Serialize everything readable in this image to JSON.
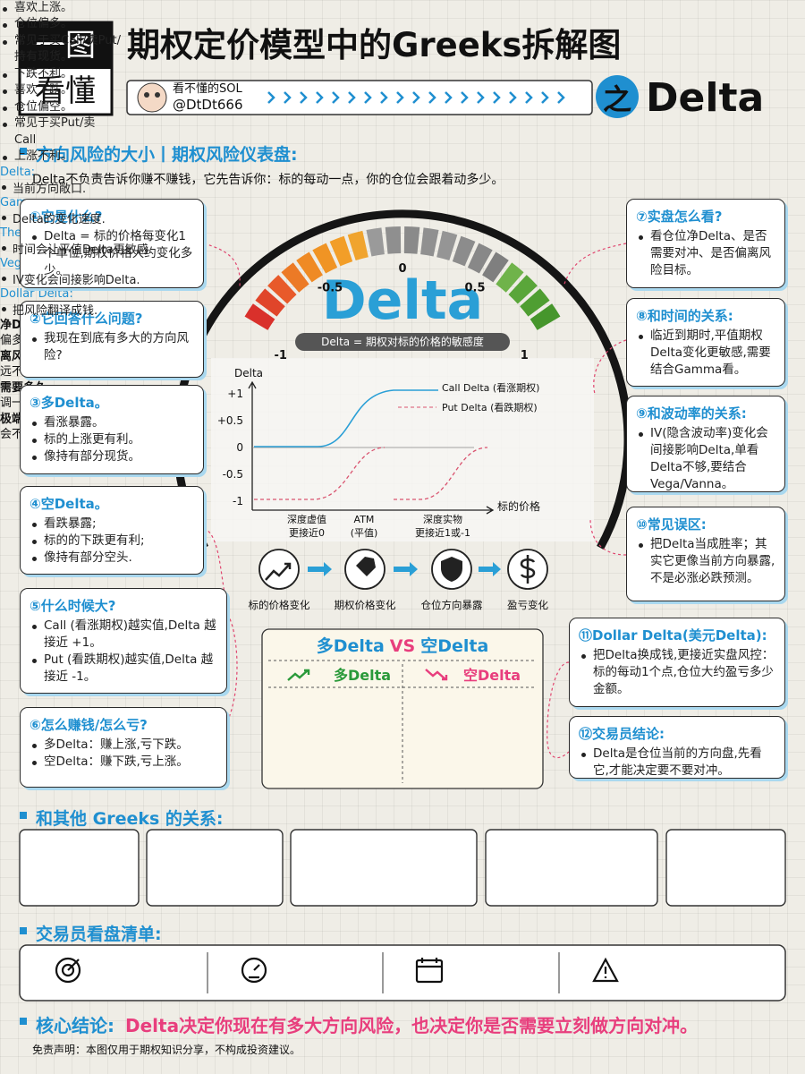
{
  "header": {
    "badge": [
      "一图",
      "看懂"
    ],
    "title": "期权定价模型中的Greeks拆解图",
    "subtitle_prefix": "之",
    "subtitle": "Delta",
    "author": {
      "name": "看不懂的SOL",
      "handle": "@DtDt666"
    }
  },
  "section_risk": {
    "heading": "方向风险的大小丨期权风险仪表盘:",
    "intro": "Delta不负责告诉你赚不赚钱，它先告诉你：标的每动一点，你的仓位会跟着动多少。"
  },
  "left_cards": [
    {
      "title": "①它是什么?",
      "items": [
        "Delta = 标的价格每变化1个单位,期权价格大约变化多少。"
      ]
    },
    {
      "title": "②它回答什么问题?",
      "items": [
        "我现在到底有多大的方向风险?"
      ]
    },
    {
      "title": "③多Delta。",
      "items": [
        "看涨暴露。",
        "标的上涨更有利。",
        "像持有部分现货。"
      ]
    },
    {
      "title": "④空Delta。",
      "items": [
        "看跌暴露;",
        "标的的下跌更有利;",
        "像持有部分空头."
      ]
    },
    {
      "title": "⑤什么时候大?",
      "items": [
        "Call (看涨期权)越实值,Delta 越接近 +1。",
        "Put (看跌期权)越实值,Delta 越接近 -1。"
      ]
    },
    {
      "title": "⑥怎么赚钱/怎么亏?",
      "items": [
        "多Delta：赚上涨,亏下跌。",
        "空Delta：赚下跌,亏上涨。"
      ]
    }
  ],
  "right_cards": [
    {
      "title": "⑦实盘怎么看?",
      "items": [
        "看仓位净Delta、是否需要对冲、是否偏离风险目标。"
      ]
    },
    {
      "title": "⑧和时间的关系:",
      "items": [
        "临近到期时,平值期权Delta变化更敏感,需要结合Gamma看。"
      ]
    },
    {
      "title": "⑨和波动率的关系:",
      "items": [
        "IV(隐含波动率)变化会间接影响Delta,单看Delta不够,要结合Vega/Vanna。"
      ]
    },
    {
      "title": "⑩常见误区:",
      "items": [
        "把Delta当成胜率；其实它更像当前方向暴露,不是必涨必跌预测。"
      ]
    },
    {
      "title": "⑪Dollar Delta(美元Delta):",
      "items": [
        "把Delta换成钱,更接近实盘风控：标的每动1个点,仓位大约盈亏多少金额。"
      ]
    },
    {
      "title": "⑫交易员结论:",
      "items": [
        "Delta是仓位当前的方向盘,先看它,才能决定要不要对冲。"
      ]
    }
  ],
  "gauge": {
    "labels": [
      "-1",
      "-0.5",
      "0",
      "0.5",
      "1"
    ],
    "center": "Delta",
    "caption": "Delta = 期权对标的价格的敏感度"
  },
  "curve_chart": {
    "y_label": "Delta",
    "y_ticks": [
      "+1",
      "+0.5",
      "0",
      "-0.5",
      "-1"
    ],
    "legend": [
      "Call Delta (看涨期权)",
      "Put Delta (看跌期权)"
    ],
    "x_label": "标的价格",
    "x_notes": [
      [
        "深度虚值",
        "更接近0"
      ],
      [
        "ATM",
        "(平值)"
      ],
      [
        "深度实物",
        "更接近1或-1"
      ]
    ]
  },
  "flow": [
    "标的价格变化",
    "期权价格变化",
    "仓位方向暴露",
    "盈亏变化"
  ],
  "compare": {
    "title": [
      "多Delta",
      "VS",
      "空Delta"
    ],
    "columns": [
      {
        "heading": "多Delta",
        "items": [
          "喜欢上涨。",
          "仓位偏多。",
          "常见于买Call/卖Put/持有现货。",
          "下跌不利。"
        ]
      },
      {
        "heading": "空Delta",
        "items": [
          "喜欢下跌。",
          "仓位偏空。",
          "常见于买Put/卖Call",
          "上涨不利。"
        ]
      }
    ]
  },
  "greeks": {
    "heading": "和其他 Greeks 的关系:",
    "items": [
      {
        "name": "Delta:",
        "desc": "当前方向敞口."
      },
      {
        "name": "Gamma:",
        "desc": "Delta的变化速度."
      },
      {
        "name": "Theta:",
        "desc": "时间会让平值Delta更敏感."
      },
      {
        "name": "Vega:",
        "desc": "IV变化会间接影响Delta."
      },
      {
        "name": "Dollar Delta:",
        "desc": "把风险翻译成钱."
      }
    ]
  },
  "checklist": {
    "heading": "交易员看盘清单:",
    "items": [
      {
        "title": "净Delta:",
        "desc": "偏多还是偏空?"
      },
      {
        "title": "离风险目标:",
        "desc": "远不远?"
      },
      {
        "title": "需要多久",
        "desc": "调一次仓位?"
      },
      {
        "title": "极端行情下:",
        "desc": "会不会超出承受范围?"
      }
    ]
  },
  "conclusion": {
    "label": "核心结论:",
    "text": "Delta决定你现在有多大方向风险，也决定你是否需要立刻做方向对冲。"
  },
  "disclaimer": "免责声明：本图仅用于期权知识分享，不构成投资建议。"
}
